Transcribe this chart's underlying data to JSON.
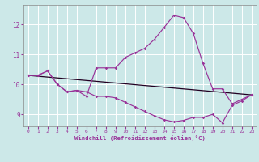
{
  "xlabel": "Windchill (Refroidissement éolien,°C)",
  "bg_color": "#cce8e8",
  "grid_color": "#aadddd",
  "line_color": "#993399",
  "dark_line_color": "#220022",
  "xlim": [
    -0.5,
    23.5
  ],
  "ylim": [
    8.6,
    12.65
  ],
  "yticks": [
    9,
    10,
    11,
    12
  ],
  "xticks": [
    0,
    1,
    2,
    3,
    4,
    5,
    6,
    7,
    8,
    9,
    10,
    11,
    12,
    13,
    14,
    15,
    16,
    17,
    18,
    19,
    20,
    21,
    22,
    23
  ],
  "series1_x": [
    0,
    1,
    2,
    3,
    4,
    5,
    6,
    7,
    8,
    9,
    10,
    11,
    12,
    13,
    14,
    15,
    16,
    17,
    18,
    19,
    20,
    21,
    22,
    23
  ],
  "series1_y": [
    10.3,
    10.3,
    10.45,
    10.0,
    9.75,
    9.8,
    9.6,
    10.55,
    10.55,
    10.55,
    10.9,
    11.05,
    11.2,
    11.5,
    11.9,
    12.3,
    12.22,
    11.7,
    10.7,
    9.85,
    9.85,
    9.35,
    9.5,
    9.65
  ],
  "series2_x": [
    0,
    1,
    2,
    3,
    4,
    5,
    6,
    7,
    8,
    9,
    10,
    11,
    12,
    13,
    14,
    15,
    16,
    17,
    18,
    19,
    20,
    21,
    22,
    23
  ],
  "series2_y": [
    10.3,
    10.3,
    10.45,
    10.0,
    9.75,
    9.8,
    9.75,
    9.6,
    9.6,
    9.55,
    9.4,
    9.25,
    9.1,
    8.95,
    8.82,
    8.75,
    8.8,
    8.9,
    8.9,
    9.0,
    8.72,
    9.3,
    9.45,
    9.65
  ],
  "series3_x": [
    0,
    23
  ],
  "series3_y": [
    10.3,
    9.65
  ]
}
